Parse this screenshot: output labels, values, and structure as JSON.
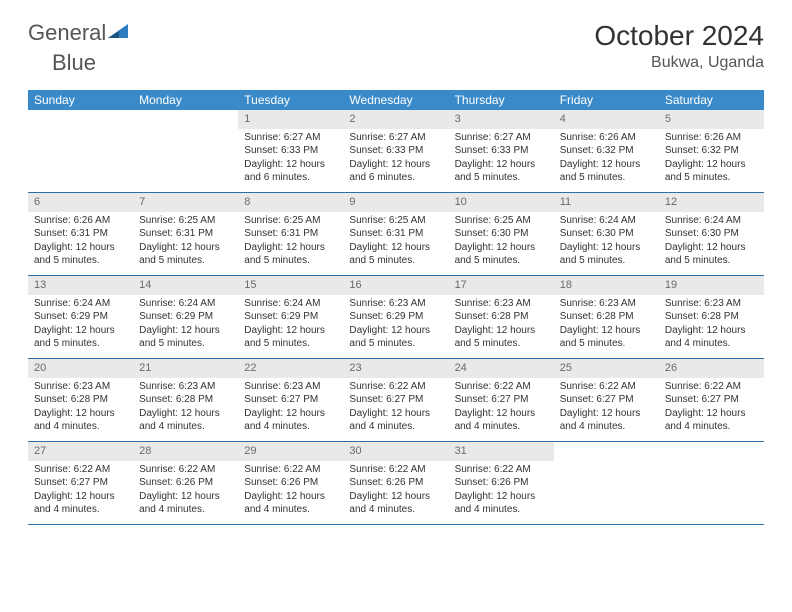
{
  "brand": {
    "word1": "General",
    "word2": "Blue"
  },
  "title": "October 2024",
  "location": "Bukwa, Uganda",
  "colors": {
    "header_bg": "#3a8ac9",
    "header_text": "#ffffff",
    "daynum_bg": "#e9e9e9",
    "daynum_text": "#6a6a6a",
    "row_border": "#2e6fa8",
    "page_bg": "#ffffff"
  },
  "daysOfWeek": [
    "Sunday",
    "Monday",
    "Tuesday",
    "Wednesday",
    "Thursday",
    "Friday",
    "Saturday"
  ],
  "weeks": [
    [
      null,
      null,
      {
        "n": "1",
        "sunrise": "6:27 AM",
        "sunset": "6:33 PM",
        "daylight": "12 hours and 6 minutes."
      },
      {
        "n": "2",
        "sunrise": "6:27 AM",
        "sunset": "6:33 PM",
        "daylight": "12 hours and 6 minutes."
      },
      {
        "n": "3",
        "sunrise": "6:27 AM",
        "sunset": "6:33 PM",
        "daylight": "12 hours and 5 minutes."
      },
      {
        "n": "4",
        "sunrise": "6:26 AM",
        "sunset": "6:32 PM",
        "daylight": "12 hours and 5 minutes."
      },
      {
        "n": "5",
        "sunrise": "6:26 AM",
        "sunset": "6:32 PM",
        "daylight": "12 hours and 5 minutes."
      }
    ],
    [
      {
        "n": "6",
        "sunrise": "6:26 AM",
        "sunset": "6:31 PM",
        "daylight": "12 hours and 5 minutes."
      },
      {
        "n": "7",
        "sunrise": "6:25 AM",
        "sunset": "6:31 PM",
        "daylight": "12 hours and 5 minutes."
      },
      {
        "n": "8",
        "sunrise": "6:25 AM",
        "sunset": "6:31 PM",
        "daylight": "12 hours and 5 minutes."
      },
      {
        "n": "9",
        "sunrise": "6:25 AM",
        "sunset": "6:31 PM",
        "daylight": "12 hours and 5 minutes."
      },
      {
        "n": "10",
        "sunrise": "6:25 AM",
        "sunset": "6:30 PM",
        "daylight": "12 hours and 5 minutes."
      },
      {
        "n": "11",
        "sunrise": "6:24 AM",
        "sunset": "6:30 PM",
        "daylight": "12 hours and 5 minutes."
      },
      {
        "n": "12",
        "sunrise": "6:24 AM",
        "sunset": "6:30 PM",
        "daylight": "12 hours and 5 minutes."
      }
    ],
    [
      {
        "n": "13",
        "sunrise": "6:24 AM",
        "sunset": "6:29 PM",
        "daylight": "12 hours and 5 minutes."
      },
      {
        "n": "14",
        "sunrise": "6:24 AM",
        "sunset": "6:29 PM",
        "daylight": "12 hours and 5 minutes."
      },
      {
        "n": "15",
        "sunrise": "6:24 AM",
        "sunset": "6:29 PM",
        "daylight": "12 hours and 5 minutes."
      },
      {
        "n": "16",
        "sunrise": "6:23 AM",
        "sunset": "6:29 PM",
        "daylight": "12 hours and 5 minutes."
      },
      {
        "n": "17",
        "sunrise": "6:23 AM",
        "sunset": "6:28 PM",
        "daylight": "12 hours and 5 minutes."
      },
      {
        "n": "18",
        "sunrise": "6:23 AM",
        "sunset": "6:28 PM",
        "daylight": "12 hours and 5 minutes."
      },
      {
        "n": "19",
        "sunrise": "6:23 AM",
        "sunset": "6:28 PM",
        "daylight": "12 hours and 4 minutes."
      }
    ],
    [
      {
        "n": "20",
        "sunrise": "6:23 AM",
        "sunset": "6:28 PM",
        "daylight": "12 hours and 4 minutes."
      },
      {
        "n": "21",
        "sunrise": "6:23 AM",
        "sunset": "6:28 PM",
        "daylight": "12 hours and 4 minutes."
      },
      {
        "n": "22",
        "sunrise": "6:23 AM",
        "sunset": "6:27 PM",
        "daylight": "12 hours and 4 minutes."
      },
      {
        "n": "23",
        "sunrise": "6:22 AM",
        "sunset": "6:27 PM",
        "daylight": "12 hours and 4 minutes."
      },
      {
        "n": "24",
        "sunrise": "6:22 AM",
        "sunset": "6:27 PM",
        "daylight": "12 hours and 4 minutes."
      },
      {
        "n": "25",
        "sunrise": "6:22 AM",
        "sunset": "6:27 PM",
        "daylight": "12 hours and 4 minutes."
      },
      {
        "n": "26",
        "sunrise": "6:22 AM",
        "sunset": "6:27 PM",
        "daylight": "12 hours and 4 minutes."
      }
    ],
    [
      {
        "n": "27",
        "sunrise": "6:22 AM",
        "sunset": "6:27 PM",
        "daylight": "12 hours and 4 minutes."
      },
      {
        "n": "28",
        "sunrise": "6:22 AM",
        "sunset": "6:26 PM",
        "daylight": "12 hours and 4 minutes."
      },
      {
        "n": "29",
        "sunrise": "6:22 AM",
        "sunset": "6:26 PM",
        "daylight": "12 hours and 4 minutes."
      },
      {
        "n": "30",
        "sunrise": "6:22 AM",
        "sunset": "6:26 PM",
        "daylight": "12 hours and 4 minutes."
      },
      {
        "n": "31",
        "sunrise": "6:22 AM",
        "sunset": "6:26 PM",
        "daylight": "12 hours and 4 minutes."
      },
      null,
      null
    ]
  ],
  "labels": {
    "sunrise": "Sunrise:",
    "sunset": "Sunset:",
    "daylight": "Daylight:"
  }
}
